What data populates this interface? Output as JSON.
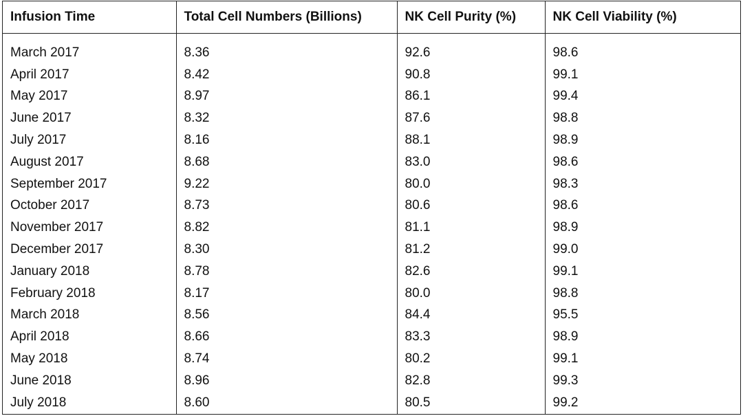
{
  "table": {
    "headers": [
      "Infusion Time",
      "Total Cell Numbers (Billions)",
      "NK Cell Purity (%)",
      "NK Cell Viability (%)"
    ],
    "rows": [
      [
        "March 2017",
        "8.36",
        "92.6",
        "98.6"
      ],
      [
        "April 2017",
        "8.42",
        "90.8",
        "99.1"
      ],
      [
        "May 2017",
        "8.97",
        "86.1",
        "99.4"
      ],
      [
        "June 2017",
        "8.32",
        "87.6",
        "98.8"
      ],
      [
        "July 2017",
        "8.16",
        "88.1",
        "98.9"
      ],
      [
        "August 2017",
        "8.68",
        "83.0",
        "98.6"
      ],
      [
        "September 2017",
        "9.22",
        "80.0",
        "98.3"
      ],
      [
        "October 2017",
        "8.73",
        "80.6",
        "98.6"
      ],
      [
        "November 2017",
        "8.82",
        "81.1",
        "98.9"
      ],
      [
        "December 2017",
        "8.30",
        "81.2",
        "99.0"
      ],
      [
        "January 2018",
        "8.78",
        "82.6",
        "99.1"
      ],
      [
        "February 2018",
        "8.17",
        "80.0",
        "98.8"
      ],
      [
        "March 2018",
        "8.56",
        "84.4",
        "95.5"
      ],
      [
        "April 2018",
        "8.66",
        "83.3",
        "98.9"
      ],
      [
        "May 2018",
        "8.74",
        "80.2",
        "99.1"
      ],
      [
        "June 2018",
        "8.96",
        "82.8",
        "99.3"
      ],
      [
        "July 2018",
        "8.60",
        "80.5",
        "99.2"
      ]
    ]
  }
}
